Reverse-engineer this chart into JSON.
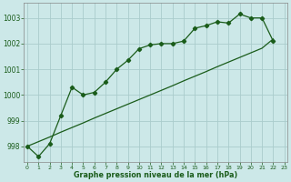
{
  "title": "Graphe pression niveau de la mer (hPa)",
  "background_color": "#cce8e8",
  "grid_color": "#aacccc",
  "line_color": "#1a5c1a",
  "x_values": [
    0,
    1,
    2,
    3,
    4,
    5,
    6,
    7,
    8,
    9,
    10,
    11,
    12,
    13,
    14,
    15,
    16,
    17,
    18,
    19,
    20,
    21,
    22,
    23
  ],
  "y_main": [
    998.0,
    997.6,
    998.1,
    999.2,
    1000.3,
    1000.0,
    1000.1,
    1000.5,
    1001.0,
    1001.35,
    1001.8,
    1001.95,
    1002.0,
    1002.0,
    1002.1,
    1002.6,
    1002.7,
    1002.85,
    1002.8,
    1003.15,
    1003.0,
    1003.0,
    1002.1,
    null
  ],
  "y_trend": [
    998.0,
    998.18,
    998.36,
    998.55,
    998.73,
    998.91,
    999.1,
    999.28,
    999.46,
    999.64,
    999.82,
    1000.0,
    1000.18,
    1000.36,
    1000.55,
    1000.73,
    1000.91,
    1001.1,
    1001.28,
    1001.46,
    1001.64,
    1001.82,
    1002.18,
    null
  ],
  "ylim": [
    997.4,
    1003.6
  ],
  "yticks": [
    998,
    999,
    1000,
    1001,
    1002,
    1003
  ],
  "xlim": [
    -0.3,
    23.3
  ],
  "xticks": [
    0,
    1,
    2,
    3,
    4,
    5,
    6,
    7,
    8,
    9,
    10,
    11,
    12,
    13,
    14,
    15,
    16,
    17,
    18,
    19,
    20,
    21,
    22,
    23
  ],
  "marker": "D",
  "markersize": 2.2,
  "linewidth": 0.9
}
